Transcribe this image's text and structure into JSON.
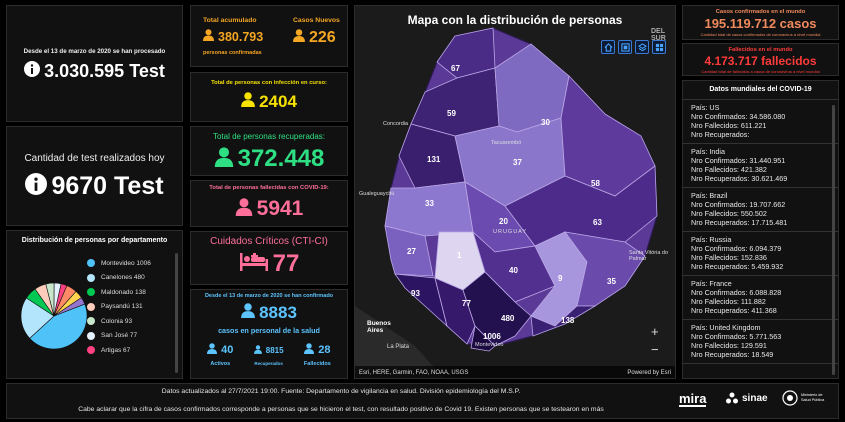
{
  "left": {
    "tests_total": {
      "caption": "Desde el 13 de marzo de 2020 se han procesado",
      "value": "3.030.595 Test"
    },
    "tests_today": {
      "caption": "Cantidad de test realizados hoy",
      "value": "9670 Test"
    },
    "dept": {
      "title": "Distribución de personas por departamento",
      "items": [
        {
          "label": "Montevideo",
          "value": "1006",
          "color": "#4fc3f7"
        },
        {
          "label": "Canelones",
          "value": "480",
          "color": "#b3e5fc"
        },
        {
          "label": "Maldonado",
          "value": "138",
          "color": "#00c853"
        },
        {
          "label": "Paysandú",
          "value": "131",
          "color": "#ffccbc"
        },
        {
          "label": "Colonia",
          "value": "93",
          "color": "#c8e6c9"
        },
        {
          "label": "San José",
          "value": "77",
          "color": "#e3f2fd"
        },
        {
          "label": "Artigas",
          "value": "67",
          "color": "#ff4081"
        }
      ]
    }
  },
  "mid": {
    "total_acum": {
      "title": "Total acumulado",
      "value": "380.793",
      "caption": "personas confirmadas"
    },
    "nuevos": {
      "title": "Casos Nuevos",
      "value": "226"
    },
    "en_curso": {
      "title": "Total de personas con infección en curso:",
      "value": "2404"
    },
    "recuperadas": {
      "title": "Total de personas recuperadas:",
      "value": "372.448"
    },
    "fallecidas": {
      "title": "Total de personas fallecidas con COVID-19:",
      "value": "5941"
    },
    "cti": {
      "title": "Cuidados Críticos (CTI-CI)",
      "value": "77"
    },
    "salud": {
      "caption": "Desde el 13 de marzo de 2020 se han confirmado",
      "value": "8883",
      "subtitle": "casos en personal de la salud",
      "activos": {
        "value": "40",
        "label": "Activos"
      },
      "recuperados": {
        "value": "8815",
        "label": "Recuperados"
      },
      "fallecidos": {
        "value": "28",
        "label": "Fallecidos"
      }
    }
  },
  "map": {
    "title": "Mapa con la distribución de personas",
    "attribution": "Esri, HERE, Garmin, FAO, NOAA, USGS",
    "powered": "Powered by Esri",
    "overlay_label": "DEL SUR",
    "zoom_in": "+",
    "zoom_out": "−",
    "departments": [
      {
        "value": "67"
      },
      {
        "value": "59"
      },
      {
        "value": "30"
      },
      {
        "value": "131"
      },
      {
        "value": "37"
      },
      {
        "value": "58"
      },
      {
        "value": "33"
      },
      {
        "value": "20"
      },
      {
        "value": "63"
      },
      {
        "value": "27"
      },
      {
        "value": "1"
      },
      {
        "value": "40"
      },
      {
        "value": "9"
      },
      {
        "value": "35"
      },
      {
        "value": "93"
      },
      {
        "value": "77"
      },
      {
        "value": "480"
      },
      {
        "value": "138"
      },
      {
        "value": "1006"
      }
    ],
    "places": [
      "Concordia",
      "Tacuarembó",
      "Gualeguaychú",
      "URUGUAY",
      "Santa Vitória do Palmar",
      "Buenos Aires",
      "La Plata",
      "Montevideo"
    ]
  },
  "right": {
    "world_cases": {
      "title": "Casos confirmados en el mundo",
      "value": "195.119.712 casos",
      "caption": "Cantidad total de casos confirmados de coronavirus a nivel mundial"
    },
    "world_deaths": {
      "title": "Fallecidos en el mundo",
      "value": "4.173.717 fallecidos",
      "caption": "Cantidad total de fallecidos a causa de coronavirus a nivel mundial"
    },
    "world_list": {
      "title": "Datos mundiales del COVID-19",
      "countries": [
        {
          "pais": "País: US",
          "conf": "Nro Confirmados: 34.586.080",
          "fall": "Nro Fallecidos: 611.221",
          "rec": "Nro Recuperados:"
        },
        {
          "pais": "País: India",
          "conf": "Nro Confirmados: 31.440.951",
          "fall": "Nro Fallecidos: 421.382",
          "rec": "Nro Recuperados: 30.621.469"
        },
        {
          "pais": "País: Brazil",
          "conf": "Nro Confirmados: 19.707.662",
          "fall": "Nro Fallecidos: 550.502",
          "rec": "Nro Recuperados: 17.715.481"
        },
        {
          "pais": "País: Russia",
          "conf": "Nro Confirmados: 6.094.379",
          "fall": "Nro Fallecidos: 152.836",
          "rec": "Nro Recuperados: 5.459.932"
        },
        {
          "pais": "País: France",
          "conf": "Nro Confirmados: 6.088.828",
          "fall": "Nro Fallecidos: 111.882",
          "rec": "Nro Recuperados: 411.368"
        },
        {
          "pais": "País: United Kingdom",
          "conf": "Nro Confirmados: 5.771.563",
          "fall": "Nro Fallecidos: 129.591",
          "rec": "Nro Recuperados: 18.549"
        }
      ]
    }
  },
  "footer": {
    "line1": "Datos actualizados al 27/7/2021 19:00. Fuente: Departamento de vigilancia en salud. División epidemiología del M.S.P.",
    "line2": "Cabe aclarar que la cifra de casos confirmados corresponde a personas que se hicieron el test, con resultado positivo de Covid 19. Existen personas que se testearon en más",
    "logo_mira": "mira",
    "logo_sinae": "sinae",
    "logo_msp": "Ministerio de Salud Pública"
  },
  "colors": {
    "orange": "#f5a623",
    "yellow": "#f6e100",
    "green": "#2ee083",
    "pink": "#ff6f9a",
    "blue": "#5cc4ff",
    "red": "#ff3b3b",
    "map_fill": "#5a3a96"
  }
}
